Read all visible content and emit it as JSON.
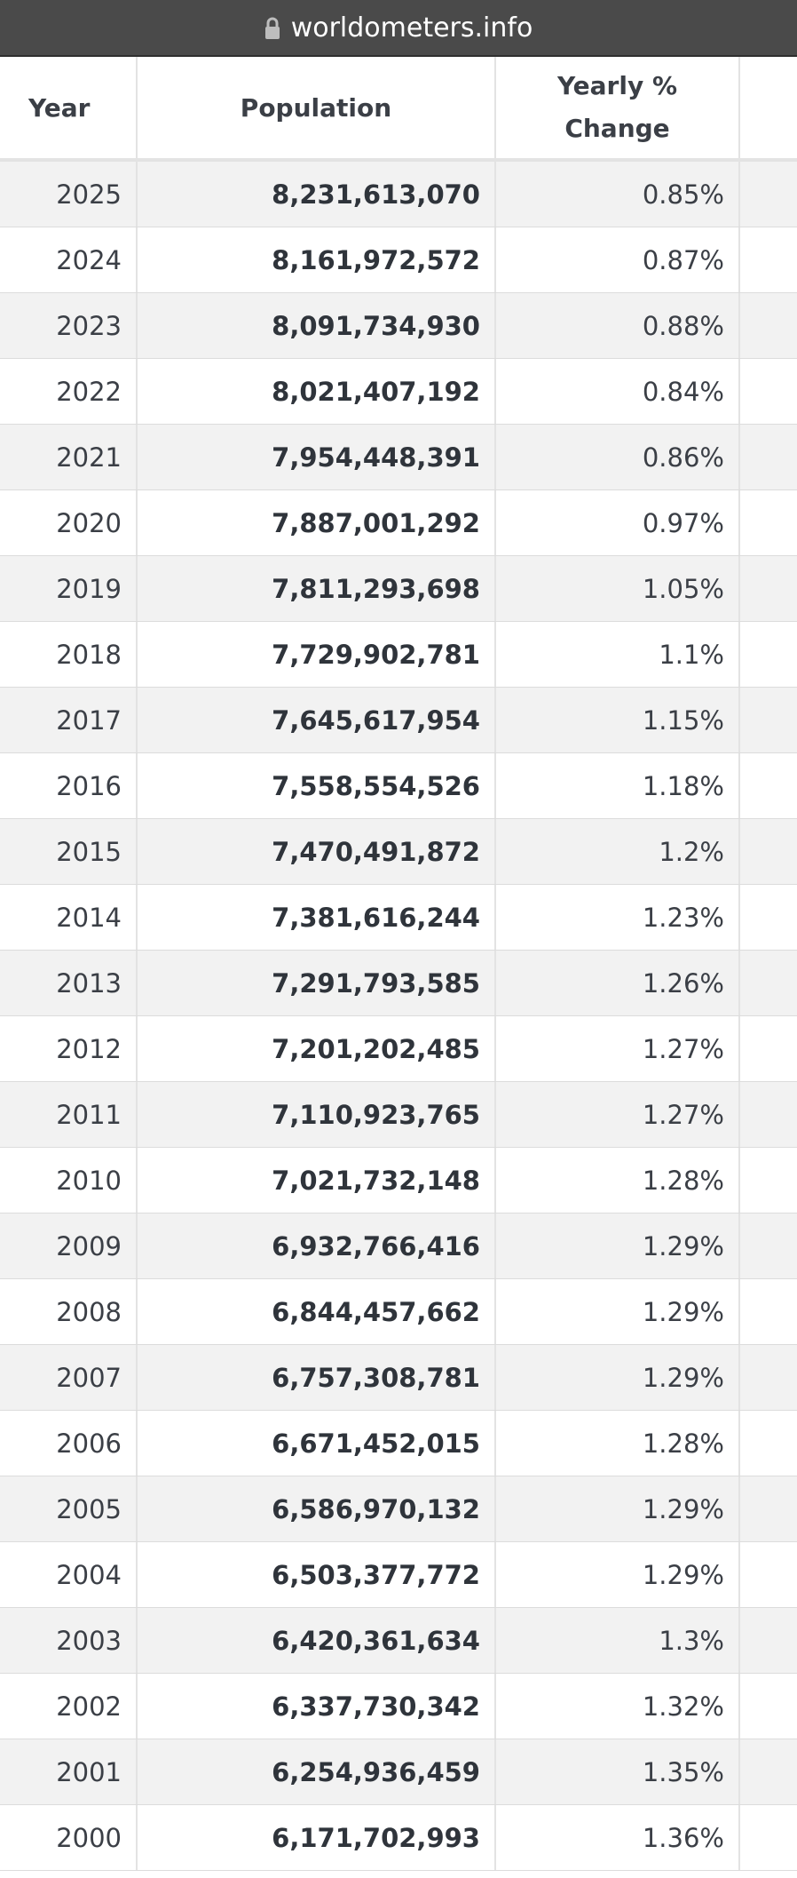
{
  "browser": {
    "url": "worldometers.info"
  },
  "table": {
    "headers": {
      "year": "Year",
      "population": "Population",
      "yearly_change": "Yearly %\nChange"
    },
    "rows": [
      {
        "year": "2025",
        "population": "8,231,613,070",
        "change": "0.85%"
      },
      {
        "year": "2024",
        "population": "8,161,972,572",
        "change": "0.87%"
      },
      {
        "year": "2023",
        "population": "8,091,734,930",
        "change": "0.88%"
      },
      {
        "year": "2022",
        "population": "8,021,407,192",
        "change": "0.84%"
      },
      {
        "year": "2021",
        "population": "7,954,448,391",
        "change": "0.86%"
      },
      {
        "year": "2020",
        "population": "7,887,001,292",
        "change": "0.97%"
      },
      {
        "year": "2019",
        "population": "7,811,293,698",
        "change": "1.05%"
      },
      {
        "year": "2018",
        "population": "7,729,902,781",
        "change": "1.1%"
      },
      {
        "year": "2017",
        "population": "7,645,617,954",
        "change": "1.15%"
      },
      {
        "year": "2016",
        "population": "7,558,554,526",
        "change": "1.18%"
      },
      {
        "year": "2015",
        "population": "7,470,491,872",
        "change": "1.2%"
      },
      {
        "year": "2014",
        "population": "7,381,616,244",
        "change": "1.23%"
      },
      {
        "year": "2013",
        "population": "7,291,793,585",
        "change": "1.26%"
      },
      {
        "year": "2012",
        "population": "7,201,202,485",
        "change": "1.27%"
      },
      {
        "year": "2011",
        "population": "7,110,923,765",
        "change": "1.27%"
      },
      {
        "year": "2010",
        "population": "7,021,732,148",
        "change": "1.28%"
      },
      {
        "year": "2009",
        "population": "6,932,766,416",
        "change": "1.29%"
      },
      {
        "year": "2008",
        "population": "6,844,457,662",
        "change": "1.29%"
      },
      {
        "year": "2007",
        "population": "6,757,308,781",
        "change": "1.29%"
      },
      {
        "year": "2006",
        "population": "6,671,452,015",
        "change": "1.28%"
      },
      {
        "year": "2005",
        "population": "6,586,970,132",
        "change": "1.29%"
      },
      {
        "year": "2004",
        "population": "6,503,377,772",
        "change": "1.29%"
      },
      {
        "year": "2003",
        "population": "6,420,361,634",
        "change": "1.3%"
      },
      {
        "year": "2002",
        "population": "6,337,730,342",
        "change": "1.32%"
      },
      {
        "year": "2001",
        "population": "6,254,936,459",
        "change": "1.35%"
      },
      {
        "year": "2000",
        "population": "6,171,702,993",
        "change": "1.36%"
      }
    ]
  }
}
